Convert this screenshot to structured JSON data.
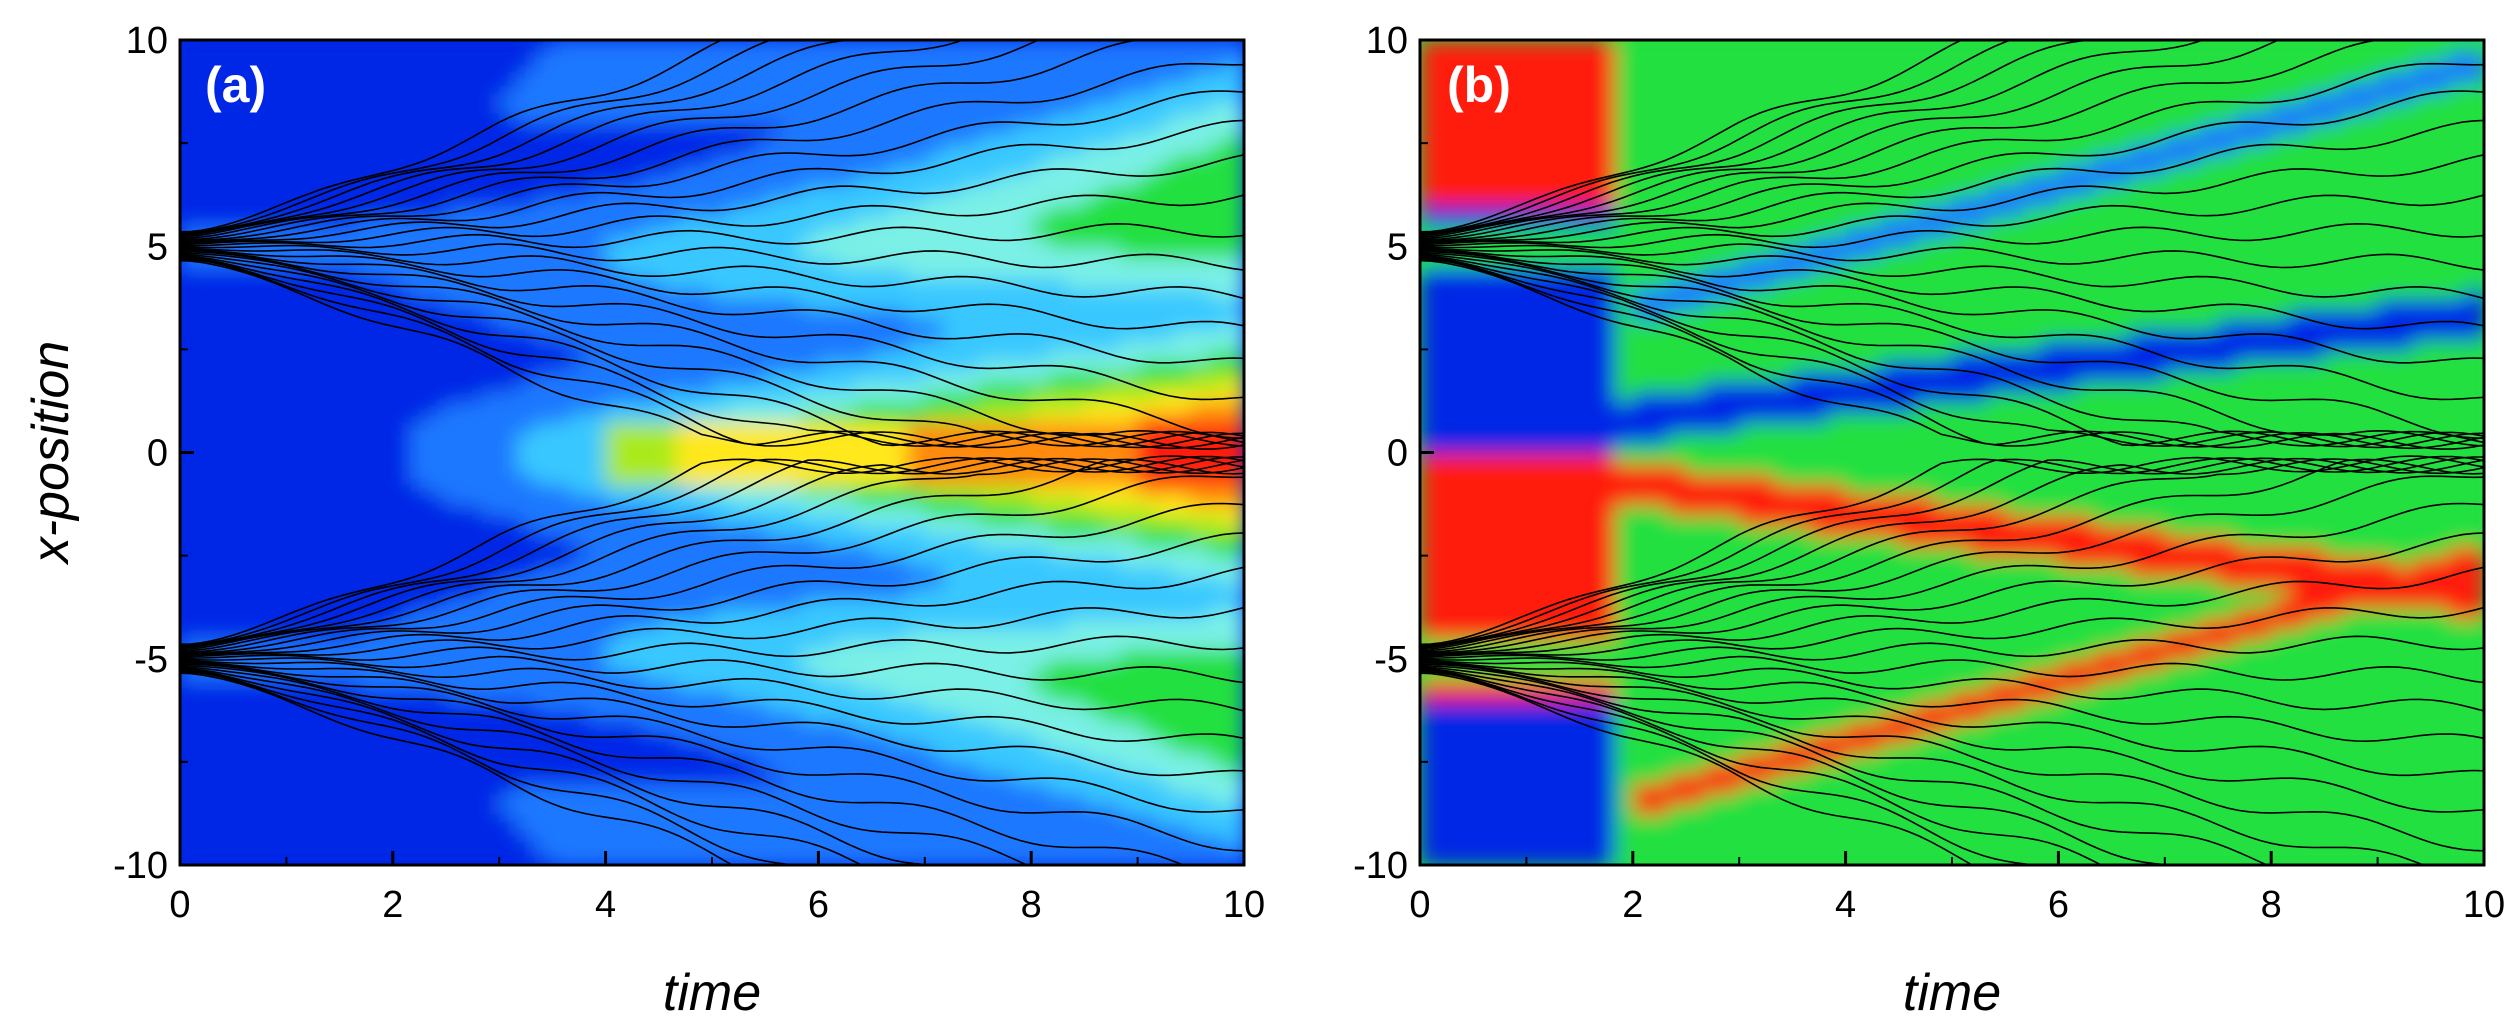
{
  "chart_data": [
    {
      "type": "heatmap",
      "panel_label": "(a)",
      "xlabel": "time",
      "ylabel": "x-position",
      "xlim": [
        0,
        10
      ],
      "ylim": [
        -10,
        10
      ],
      "x_ticks": [
        0,
        2,
        4,
        6,
        8,
        10
      ],
      "y_ticks": [
        -10,
        -5,
        0,
        5,
        10
      ],
      "x_tick_labels": [
        "0",
        "2",
        "4",
        "6",
        "8",
        "10"
      ],
      "y_tick_labels": [
        "-10",
        "-5",
        "0",
        "5",
        "10"
      ],
      "colormap": [
        "#0026e6",
        "#1e78ff",
        "#38c8ff",
        "#7af0e6",
        "#22e040",
        "#aaea1a",
        "#ffe81a",
        "#ff8a10",
        "#ff1a08"
      ],
      "background_color": "#0026e6",
      "field": "symmetric",
      "sources": [
        5,
        -5
      ],
      "trajectories_per_source": 24,
      "trajectory_color": "#000000"
    },
    {
      "type": "heatmap",
      "panel_label": "(b)",
      "xlabel": "time",
      "ylabel": "",
      "xlim": [
        0,
        10
      ],
      "ylim": [
        -10,
        10
      ],
      "x_ticks": [
        0,
        2,
        4,
        6,
        8,
        10
      ],
      "y_ticks": [
        -10,
        -5,
        0,
        5,
        10
      ],
      "x_tick_labels": [
        "0",
        "2",
        "4",
        "6",
        "8",
        "10"
      ],
      "y_tick_labels": [
        "-10",
        "-5",
        "0",
        "5",
        "10"
      ],
      "colormap": [
        "#0026e6",
        "#1e78ff",
        "#38c8ff",
        "#7af0e6",
        "#22e040",
        "#aaea1a",
        "#ffe81a",
        "#ff8a10",
        "#ff1a08"
      ],
      "background_color": "#22e040",
      "field": "antisymmetric",
      "sources": [
        5,
        -5
      ],
      "trajectories_per_source": 24,
      "trajectory_color": "#000000"
    }
  ]
}
